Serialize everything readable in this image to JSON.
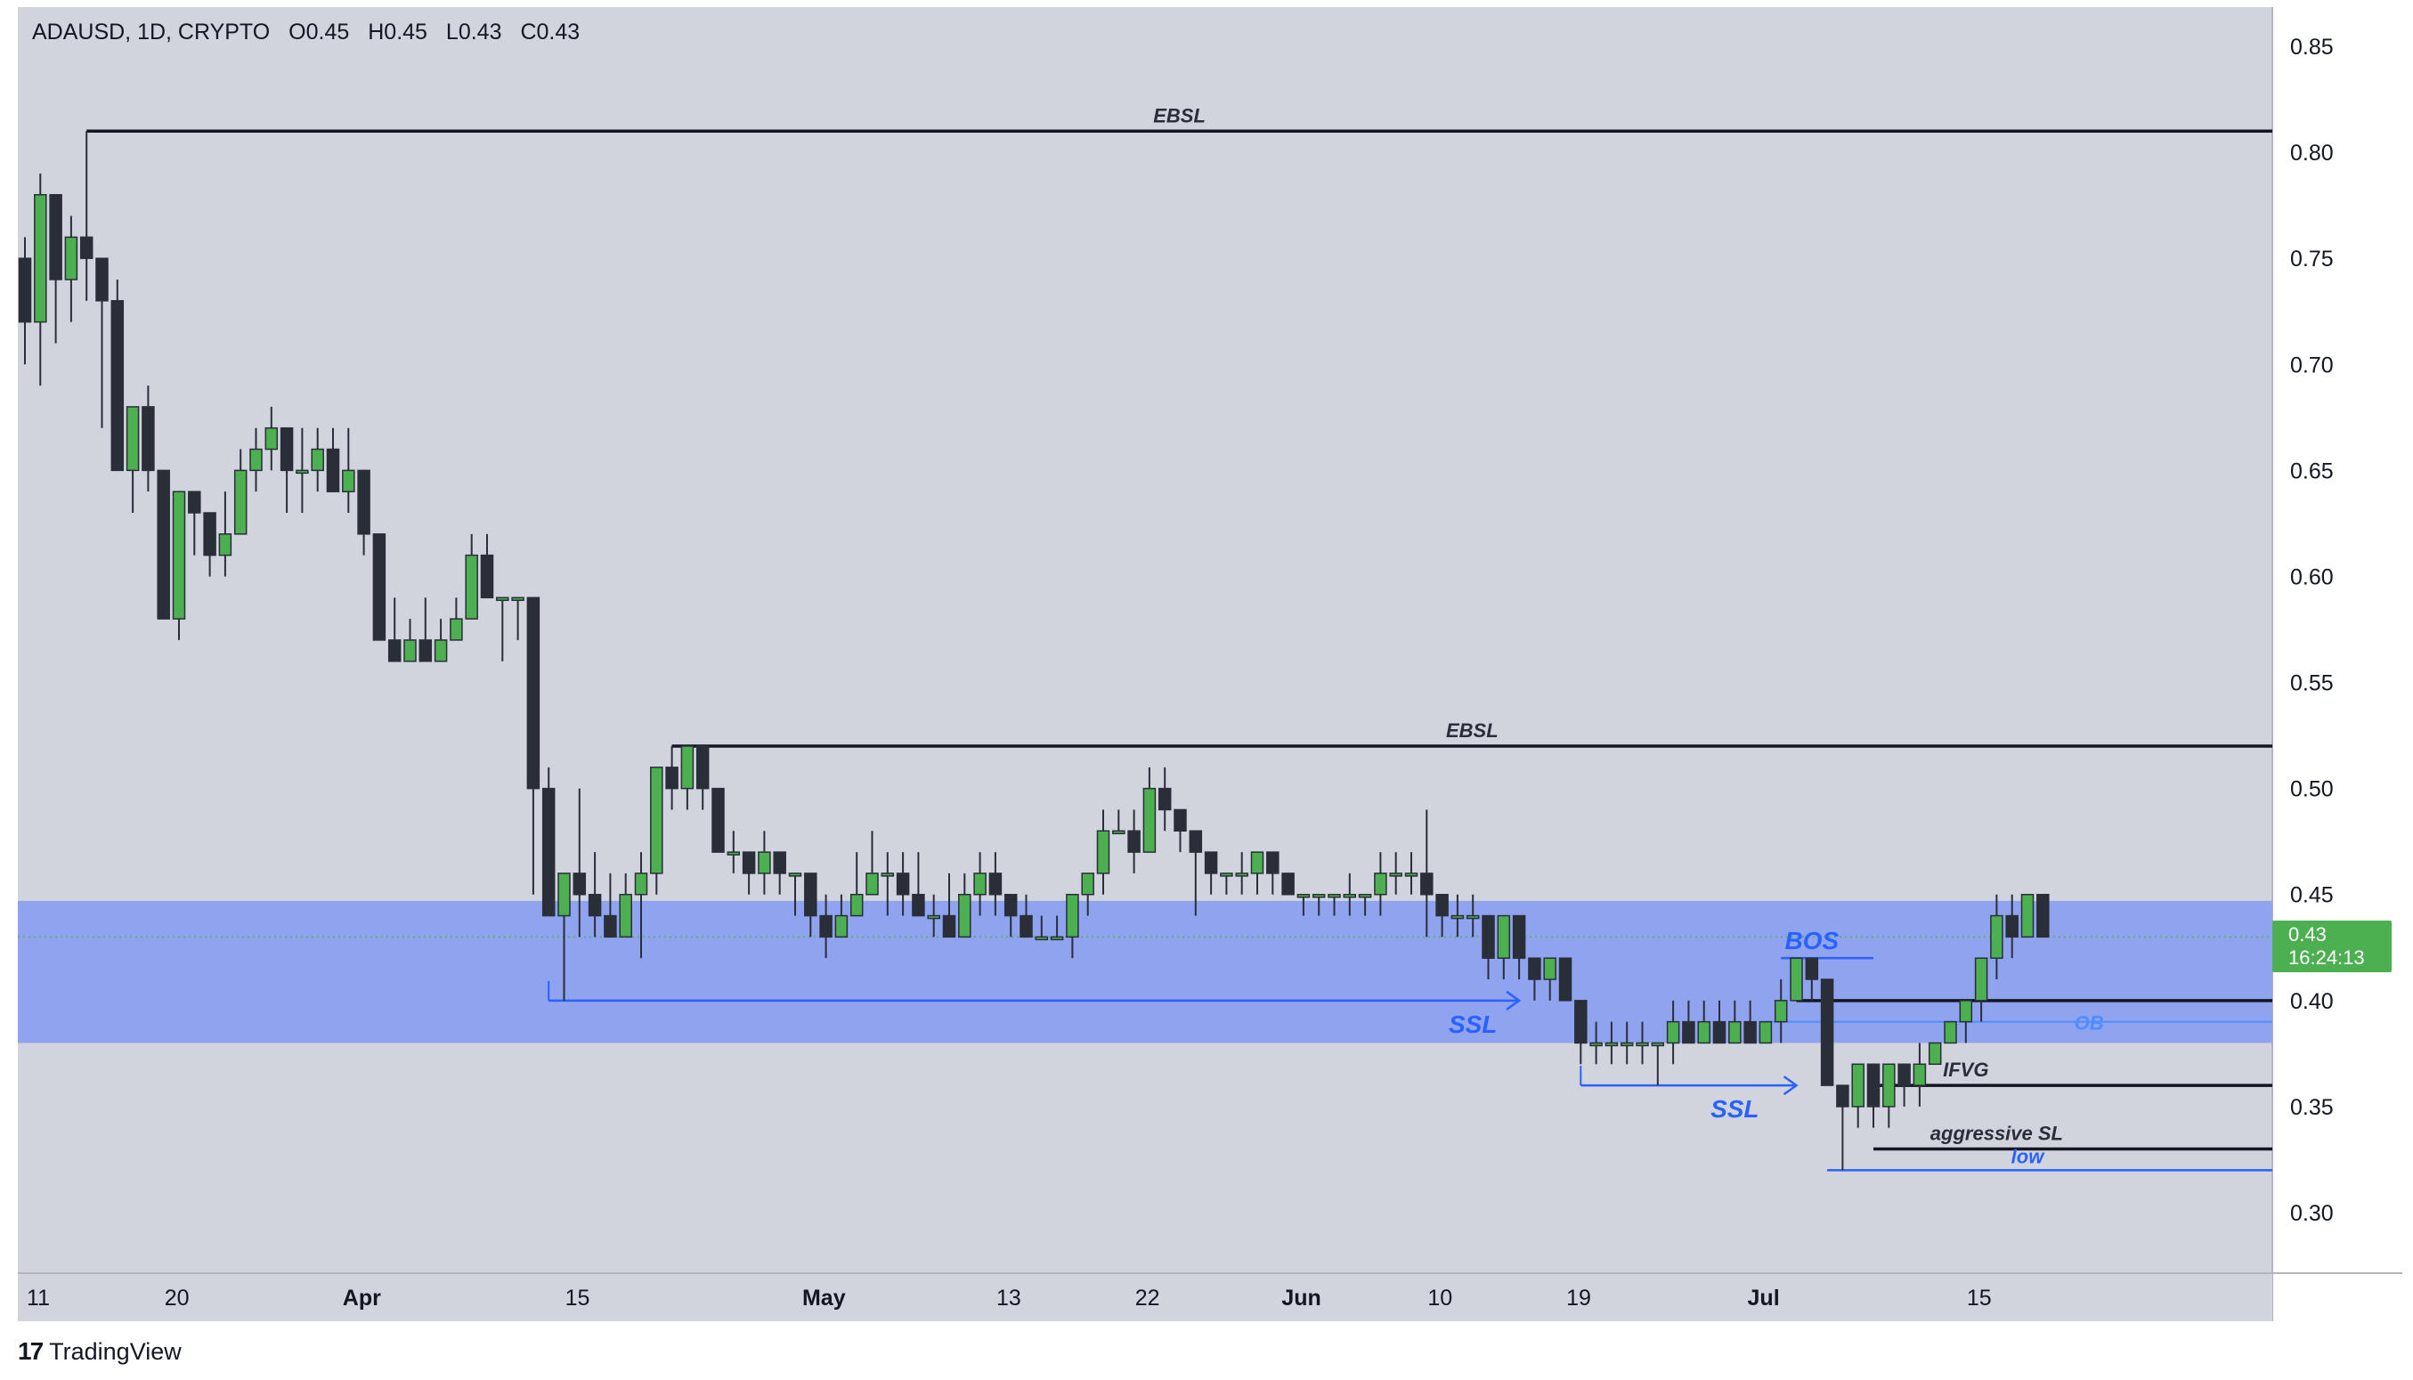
{
  "header": {
    "symbol": "ADAUSD, 1D, CRYPTO",
    "open_label": "O",
    "open_value": "0.45",
    "high_label": "H",
    "high_value": "0.45",
    "low_label": "L",
    "low_value": "0.43",
    "close_label": "C",
    "close_value": "0.43"
  },
  "brand": {
    "name": "TradingView",
    "logo_text": "17"
  },
  "price_tag": {
    "price": "0.43",
    "countdown": "16:24:13"
  },
  "colors": {
    "background": "#d1d4dc",
    "up_candle": "#4caf50",
    "down_candle": "#2a2e39",
    "zone": "#8fa3ef",
    "blue_annotation": "#2962ff",
    "black_annotation": "#131722"
  },
  "chart_data": {
    "type": "candlestick",
    "symbol": "ADAUSD",
    "timeframe": "1D",
    "y_axis": {
      "min": 0.27,
      "max": 0.87,
      "ticks": [
        "0.85",
        "0.80",
        "0.75",
        "0.70",
        "0.65",
        "0.60",
        "0.55",
        "0.50",
        "0.45",
        "0.40",
        "0.35",
        "0.30"
      ]
    },
    "x_axis": {
      "ticks": [
        {
          "label": "11",
          "day": 0
        },
        {
          "label": "20",
          "day": 9
        },
        {
          "label": "Apr",
          "day": 21,
          "bold": true
        },
        {
          "label": "15",
          "day": 35
        },
        {
          "label": "May",
          "day": 51,
          "bold": true
        },
        {
          "label": "13",
          "day": 63
        },
        {
          "label": "22",
          "day": 72
        },
        {
          "label": "Jun",
          "day": 82,
          "bold": true
        },
        {
          "label": "10",
          "day": 91
        },
        {
          "label": "19",
          "day": 100
        },
        {
          "label": "Jul",
          "day": 112,
          "bold": true
        },
        {
          "label": "15",
          "day": 126
        }
      ]
    },
    "candles": [
      [
        0.75,
        0.76,
        0.7,
        0.72
      ],
      [
        0.72,
        0.79,
        0.69,
        0.78
      ],
      [
        0.78,
        0.78,
        0.71,
        0.74
      ],
      [
        0.74,
        0.77,
        0.72,
        0.76
      ],
      [
        0.76,
        0.81,
        0.73,
        0.75
      ],
      [
        0.75,
        0.75,
        0.67,
        0.73
      ],
      [
        0.73,
        0.74,
        0.65,
        0.65
      ],
      [
        0.65,
        0.68,
        0.63,
        0.68
      ],
      [
        0.68,
        0.69,
        0.64,
        0.65
      ],
      [
        0.65,
        0.65,
        0.58,
        0.58
      ],
      [
        0.58,
        0.64,
        0.57,
        0.64
      ],
      [
        0.64,
        0.64,
        0.61,
        0.63
      ],
      [
        0.63,
        0.63,
        0.6,
        0.61
      ],
      [
        0.61,
        0.64,
        0.6,
        0.62
      ],
      [
        0.62,
        0.66,
        0.62,
        0.65
      ],
      [
        0.65,
        0.67,
        0.64,
        0.66
      ],
      [
        0.66,
        0.68,
        0.65,
        0.67
      ],
      [
        0.67,
        0.67,
        0.63,
        0.65
      ],
      [
        0.65,
        0.67,
        0.63,
        0.65
      ],
      [
        0.65,
        0.67,
        0.64,
        0.66
      ],
      [
        0.66,
        0.67,
        0.64,
        0.64
      ],
      [
        0.64,
        0.67,
        0.63,
        0.65
      ],
      [
        0.65,
        0.65,
        0.61,
        0.62
      ],
      [
        0.62,
        0.62,
        0.57,
        0.57
      ],
      [
        0.57,
        0.59,
        0.56,
        0.56
      ],
      [
        0.56,
        0.58,
        0.56,
        0.57
      ],
      [
        0.57,
        0.59,
        0.56,
        0.56
      ],
      [
        0.56,
        0.58,
        0.56,
        0.57
      ],
      [
        0.57,
        0.59,
        0.57,
        0.58
      ],
      [
        0.58,
        0.62,
        0.58,
        0.61
      ],
      [
        0.61,
        0.62,
        0.59,
        0.59
      ],
      [
        0.59,
        0.59,
        0.56,
        0.59
      ],
      [
        0.59,
        0.59,
        0.57,
        0.59
      ],
      [
        0.59,
        0.59,
        0.45,
        0.5
      ],
      [
        0.5,
        0.51,
        0.44,
        0.44
      ],
      [
        0.44,
        0.46,
        0.4,
        0.46
      ],
      [
        0.46,
        0.5,
        0.43,
        0.45
      ],
      [
        0.45,
        0.47,
        0.43,
        0.44
      ],
      [
        0.44,
        0.46,
        0.43,
        0.43
      ],
      [
        0.43,
        0.46,
        0.43,
        0.45
      ],
      [
        0.45,
        0.47,
        0.42,
        0.46
      ],
      [
        0.46,
        0.51,
        0.45,
        0.51
      ],
      [
        0.51,
        0.52,
        0.49,
        0.5
      ],
      [
        0.5,
        0.52,
        0.49,
        0.52
      ],
      [
        0.52,
        0.52,
        0.49,
        0.5
      ],
      [
        0.5,
        0.5,
        0.47,
        0.47
      ],
      [
        0.47,
        0.48,
        0.46,
        0.47
      ],
      [
        0.47,
        0.47,
        0.45,
        0.46
      ],
      [
        0.46,
        0.48,
        0.45,
        0.47
      ],
      [
        0.47,
        0.47,
        0.45,
        0.46
      ],
      [
        0.46,
        0.46,
        0.44,
        0.46
      ],
      [
        0.46,
        0.46,
        0.43,
        0.44
      ],
      [
        0.44,
        0.45,
        0.42,
        0.43
      ],
      [
        0.43,
        0.45,
        0.43,
        0.44
      ],
      [
        0.44,
        0.47,
        0.44,
        0.45
      ],
      [
        0.45,
        0.48,
        0.45,
        0.46
      ],
      [
        0.46,
        0.47,
        0.44,
        0.46
      ],
      [
        0.46,
        0.47,
        0.44,
        0.45
      ],
      [
        0.45,
        0.47,
        0.44,
        0.44
      ],
      [
        0.44,
        0.45,
        0.43,
        0.44
      ],
      [
        0.44,
        0.46,
        0.43,
        0.43
      ],
      [
        0.43,
        0.46,
        0.43,
        0.45
      ],
      [
        0.45,
        0.47,
        0.44,
        0.46
      ],
      [
        0.46,
        0.47,
        0.44,
        0.45
      ],
      [
        0.45,
        0.45,
        0.43,
        0.44
      ],
      [
        0.44,
        0.45,
        0.43,
        0.43
      ],
      [
        0.43,
        0.44,
        0.43,
        0.43
      ],
      [
        0.43,
        0.44,
        0.43,
        0.43
      ],
      [
        0.43,
        0.45,
        0.42,
        0.45
      ],
      [
        0.45,
        0.46,
        0.44,
        0.46
      ],
      [
        0.46,
        0.49,
        0.45,
        0.48
      ],
      [
        0.48,
        0.49,
        0.48,
        0.48
      ],
      [
        0.48,
        0.49,
        0.46,
        0.47
      ],
      [
        0.47,
        0.51,
        0.47,
        0.5
      ],
      [
        0.5,
        0.51,
        0.48,
        0.49
      ],
      [
        0.49,
        0.49,
        0.47,
        0.48
      ],
      [
        0.48,
        0.48,
        0.44,
        0.47
      ],
      [
        0.47,
        0.47,
        0.45,
        0.46
      ],
      [
        0.46,
        0.46,
        0.45,
        0.46
      ],
      [
        0.46,
        0.47,
        0.45,
        0.46
      ],
      [
        0.46,
        0.47,
        0.45,
        0.47
      ],
      [
        0.47,
        0.47,
        0.45,
        0.46
      ],
      [
        0.46,
        0.46,
        0.45,
        0.45
      ],
      [
        0.45,
        0.45,
        0.44,
        0.45
      ],
      [
        0.45,
        0.45,
        0.44,
        0.45
      ],
      [
        0.45,
        0.45,
        0.44,
        0.45
      ],
      [
        0.45,
        0.46,
        0.44,
        0.45
      ],
      [
        0.45,
        0.45,
        0.44,
        0.45
      ],
      [
        0.45,
        0.47,
        0.44,
        0.46
      ],
      [
        0.46,
        0.47,
        0.45,
        0.46
      ],
      [
        0.46,
        0.47,
        0.45,
        0.46
      ],
      [
        0.46,
        0.49,
        0.43,
        0.45
      ],
      [
        0.45,
        0.45,
        0.43,
        0.44
      ],
      [
        0.44,
        0.45,
        0.43,
        0.44
      ],
      [
        0.44,
        0.45,
        0.43,
        0.44
      ],
      [
        0.44,
        0.44,
        0.41,
        0.42
      ],
      [
        0.42,
        0.44,
        0.41,
        0.44
      ],
      [
        0.44,
        0.44,
        0.41,
        0.42
      ],
      [
        0.42,
        0.42,
        0.4,
        0.41
      ],
      [
        0.41,
        0.42,
        0.4,
        0.42
      ],
      [
        0.42,
        0.42,
        0.4,
        0.4
      ],
      [
        0.4,
        0.4,
        0.37,
        0.38
      ],
      [
        0.38,
        0.39,
        0.37,
        0.38
      ],
      [
        0.38,
        0.39,
        0.37,
        0.38
      ],
      [
        0.38,
        0.39,
        0.37,
        0.38
      ],
      [
        0.38,
        0.39,
        0.37,
        0.38
      ],
      [
        0.38,
        0.38,
        0.36,
        0.38
      ],
      [
        0.38,
        0.4,
        0.37,
        0.39
      ],
      [
        0.39,
        0.4,
        0.38,
        0.38
      ],
      [
        0.38,
        0.4,
        0.38,
        0.39
      ],
      [
        0.39,
        0.4,
        0.38,
        0.38
      ],
      [
        0.38,
        0.4,
        0.38,
        0.39
      ],
      [
        0.39,
        0.4,
        0.38,
        0.38
      ],
      [
        0.38,
        0.39,
        0.38,
        0.39
      ],
      [
        0.39,
        0.41,
        0.38,
        0.4
      ],
      [
        0.4,
        0.42,
        0.4,
        0.42
      ],
      [
        0.42,
        0.42,
        0.4,
        0.41
      ],
      [
        0.41,
        0.41,
        0.36,
        0.36
      ],
      [
        0.36,
        0.36,
        0.32,
        0.35
      ],
      [
        0.35,
        0.37,
        0.34,
        0.37
      ],
      [
        0.37,
        0.37,
        0.34,
        0.35
      ],
      [
        0.35,
        0.37,
        0.34,
        0.37
      ],
      [
        0.37,
        0.37,
        0.35,
        0.36
      ],
      [
        0.36,
        0.38,
        0.35,
        0.37
      ],
      [
        0.37,
        0.38,
        0.37,
        0.38
      ],
      [
        0.38,
        0.39,
        0.38,
        0.39
      ],
      [
        0.39,
        0.4,
        0.38,
        0.4
      ],
      [
        0.4,
        0.42,
        0.39,
        0.42
      ],
      [
        0.42,
        0.45,
        0.41,
        0.44
      ],
      [
        0.44,
        0.45,
        0.42,
        0.43
      ],
      [
        0.43,
        0.45,
        0.43,
        0.45
      ],
      [
        0.45,
        0.45,
        0.43,
        0.43
      ]
    ],
    "zone": {
      "top": 0.447,
      "bottom": 0.38
    },
    "current_price": 0.43,
    "annotations": [
      {
        "label": "EBSL",
        "price": 0.81,
        "day_from": 4,
        "day_to": "edge",
        "color": "black"
      },
      {
        "label": "EBSL",
        "price": 0.52,
        "day_from": 42,
        "day_to": "edge",
        "color": "black"
      },
      {
        "label": "SSL",
        "price": 0.4,
        "day_from": 34,
        "day_to": 97,
        "color": "blue",
        "label_day": 94
      },
      {
        "label": "SSL",
        "price": 0.36,
        "day_from": 101,
        "day_to": 115,
        "color": "blue",
        "label_day": 111
      },
      {
        "label": "BOS",
        "price": 0.42,
        "day_from": 114,
        "day_to": 120,
        "color": "blue",
        "label_day": 116
      },
      {
        "label": "",
        "price": 0.4,
        "day_from": 115,
        "day_to": "edge",
        "color": "black"
      },
      {
        "label": "OB",
        "price": 0.39,
        "day_from": 113,
        "day_to": "edge",
        "color": "lightblue",
        "label_day": 134
      },
      {
        "label": "IFVG",
        "price": 0.36,
        "day_from": 120,
        "day_to": "edge",
        "color": "black",
        "label_day": 126
      },
      {
        "label": "aggressive SL",
        "price": 0.33,
        "day_from": 120,
        "day_to": "edge",
        "color": "black",
        "label_day": 128
      },
      {
        "label": "low",
        "price": 0.32,
        "day_from": 117,
        "day_to": "edge",
        "color": "blue",
        "label_day": 130
      }
    ]
  }
}
